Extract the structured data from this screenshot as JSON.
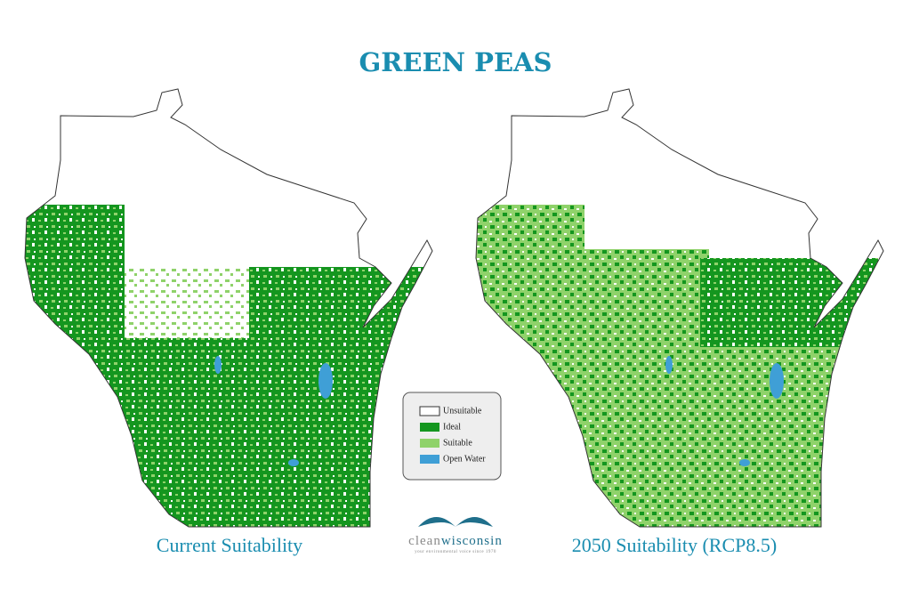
{
  "title": "GREEN PEAS",
  "maps": [
    {
      "caption": "Current Suitability"
    },
    {
      "caption": "2050 Suitability (RCP8.5)"
    }
  ],
  "legend": {
    "items": [
      {
        "label": "Unsuitable",
        "color": "#ffffff"
      },
      {
        "label": "Ideal",
        "color": "#14961f"
      },
      {
        "label": "Suitable",
        "color": "#8fd26a"
      },
      {
        "label": "Open Water",
        "color": "#3f9fd6"
      }
    ]
  },
  "logo": {
    "name_parts": [
      "clean",
      "wisconsin"
    ],
    "tagline": "your environmental voice since 1970"
  }
}
